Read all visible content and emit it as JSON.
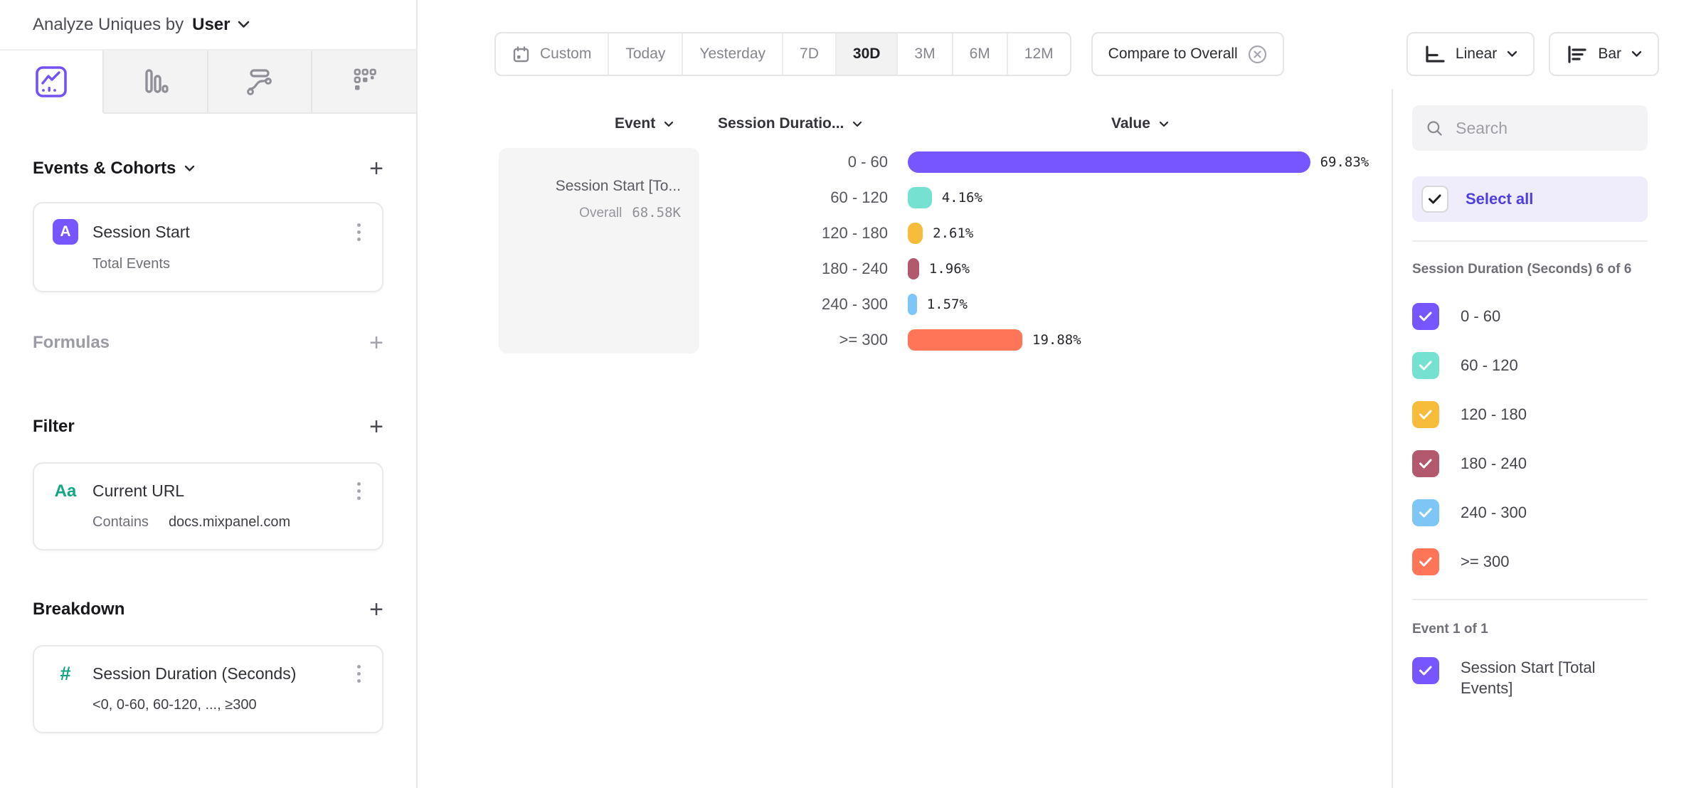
{
  "header": {
    "analyze_label": "Analyze Uniques by",
    "analyze_value": "User"
  },
  "view_tabs": [
    {
      "name": "insights-line-chart",
      "active": true
    },
    {
      "name": "bar-chart",
      "active": false
    },
    {
      "name": "flow",
      "active": false
    },
    {
      "name": "metrics",
      "active": false
    }
  ],
  "builder": {
    "events": {
      "title": "Events & Cohorts",
      "add_label": "+",
      "card": {
        "badge": "A",
        "title": "Session Start",
        "subtitle": "Total Events"
      }
    },
    "formulas": {
      "title": "Formulas",
      "add_label": "+"
    },
    "filter": {
      "title": "Filter",
      "add_label": "+",
      "card": {
        "badge": "Aa",
        "title": "Current URL",
        "operator": "Contains",
        "value": "docs.mixpanel.com"
      }
    },
    "breakdown": {
      "title": "Breakdown",
      "add_label": "+",
      "card": {
        "badge": "#",
        "title": "Session Duration (Seconds)",
        "subtitle": "<0, 0-60, 60-120, ..., ≥300"
      }
    }
  },
  "toolbar": {
    "ranges": [
      "Custom",
      "Today",
      "Yesterday",
      "7D",
      "30D",
      "3M",
      "6M",
      "12M"
    ],
    "active_range": "30D",
    "compare_label": "Compare to Overall",
    "chart_scale_label": "Linear",
    "chart_type_label": "Bar"
  },
  "table": {
    "columns": {
      "event": "Event",
      "breakdown": "Session Duratio...",
      "value": "Value"
    },
    "event_cell": {
      "title": "Session Start [To...",
      "overall_label": "Overall",
      "overall_value": "68.58K"
    }
  },
  "chart_data": {
    "type": "bar",
    "orientation": "horizontal",
    "series": "Session Start [Total Events]",
    "categories": [
      "0 - 60",
      "60 - 120",
      "120 - 180",
      "180 - 240",
      "240 - 300",
      ">= 300"
    ],
    "values": [
      69.83,
      4.16,
      2.61,
      1.96,
      1.57,
      19.88
    ],
    "value_labels": [
      "69.83%",
      "4.16%",
      "2.61%",
      "1.96%",
      "1.57%",
      "19.88%"
    ],
    "colors": [
      "#7856FF",
      "#75E1D1",
      "#F8BC3B",
      "#B2596E",
      "#7EC6F5",
      "#FF7557"
    ],
    "unit": "%",
    "overall": "68.58K"
  },
  "right_panel": {
    "search_placeholder": "Search",
    "select_all_label": "Select all",
    "group_label": "Session Duration (Seconds) 6 of 6",
    "items": [
      {
        "label": "0 - 60",
        "color": "#7856FF",
        "checked": true
      },
      {
        "label": "60 - 120",
        "color": "#75E1D1",
        "checked": true
      },
      {
        "label": "120 - 180",
        "color": "#F8BC3B",
        "checked": true
      },
      {
        "label": "180 - 240",
        "color": "#B2596E",
        "checked": true
      },
      {
        "label": "240 - 300",
        "color": "#7EC6F5",
        "checked": true
      },
      {
        "label": ">= 300",
        "color": "#FF7557",
        "checked": true
      }
    ],
    "event_group_label": "Event 1 of 1",
    "event_item": {
      "label": "Session Start [Total Events]",
      "color": "#7856FF",
      "checked": true
    }
  },
  "colors": {
    "accent": "#7856FF",
    "accent_text": "#4D40DE",
    "select_row_bg": "#EFEDFC"
  }
}
